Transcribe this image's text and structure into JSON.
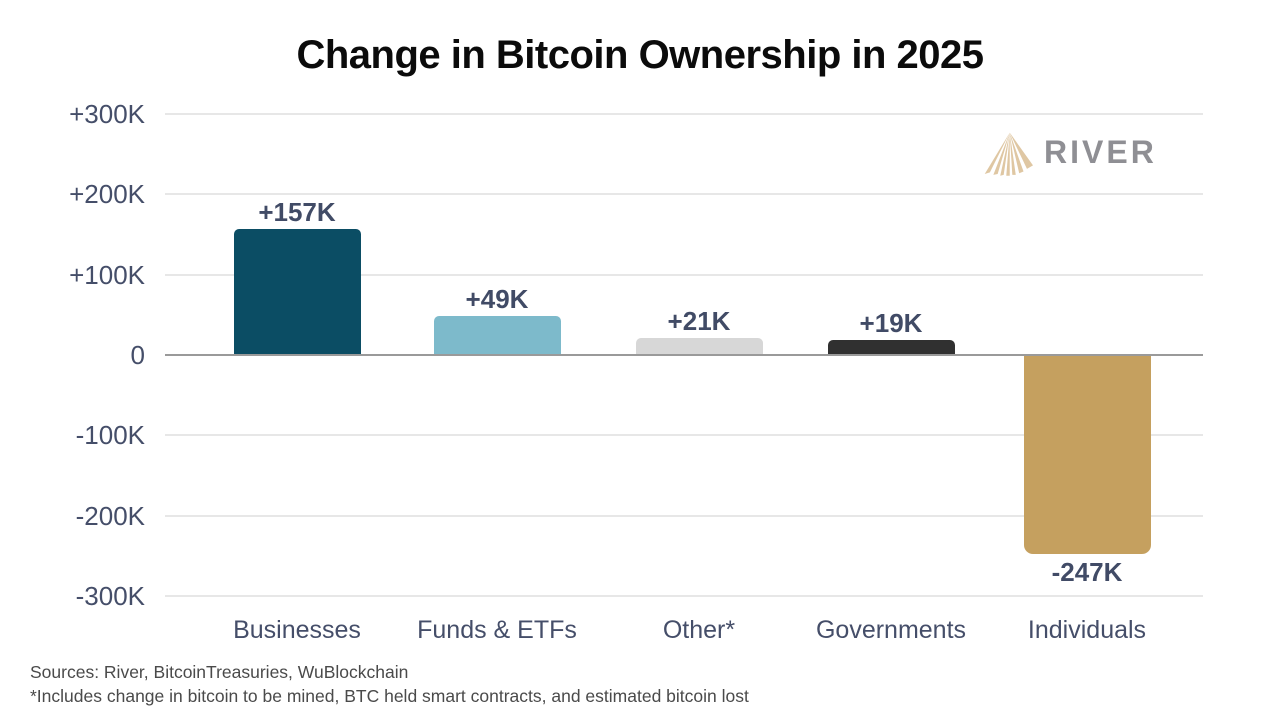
{
  "title": "Change in Bitcoin Ownership in 2025",
  "logo": {
    "text": "RIVER",
    "icon": "river-fan-icon",
    "icon_color": "#dfc7a3",
    "text_color": "#8f8f94"
  },
  "footer": {
    "sources": "Sources: River, BitcoinTreasuries, WuBlockchain",
    "note": "*Includes change in bitcoin to be mined, BTC held smart contracts, and estimated bitcoin lost"
  },
  "chart_data": {
    "type": "bar",
    "title": "Change in Bitcoin Ownership in 2025",
    "categories": [
      "Businesses",
      "Funds & ETFs",
      "Other*",
      "Governments",
      "Individuals"
    ],
    "values": [
      157,
      49,
      21,
      19,
      -247
    ],
    "value_labels": [
      "+157K",
      "+49K",
      "+21K",
      "+19K",
      "-247K"
    ],
    "unit": "K BTC",
    "bar_colors": [
      "#0b4d64",
      "#7dbacb",
      "#d7d7d7",
      "#303030",
      "#c5a05f"
    ],
    "xlabel": "",
    "ylabel": "",
    "ylim": [
      -300,
      300
    ],
    "yticks": [
      300,
      200,
      100,
      0,
      -100,
      -200,
      -300
    ],
    "ytick_labels": [
      "+300K",
      "+200K",
      "+100K",
      "0",
      "-100K",
      "-200K",
      "-300K"
    ],
    "grid": true,
    "legend": false,
    "colors": {
      "gridline": "#e7e7e7",
      "zero_line": "#9a9a9a",
      "axis_label": "#454e69",
      "value_label": "#414b66",
      "title": "#0b0b0b",
      "footer_text": "#4a4a4a",
      "background": "#ffffff"
    }
  }
}
